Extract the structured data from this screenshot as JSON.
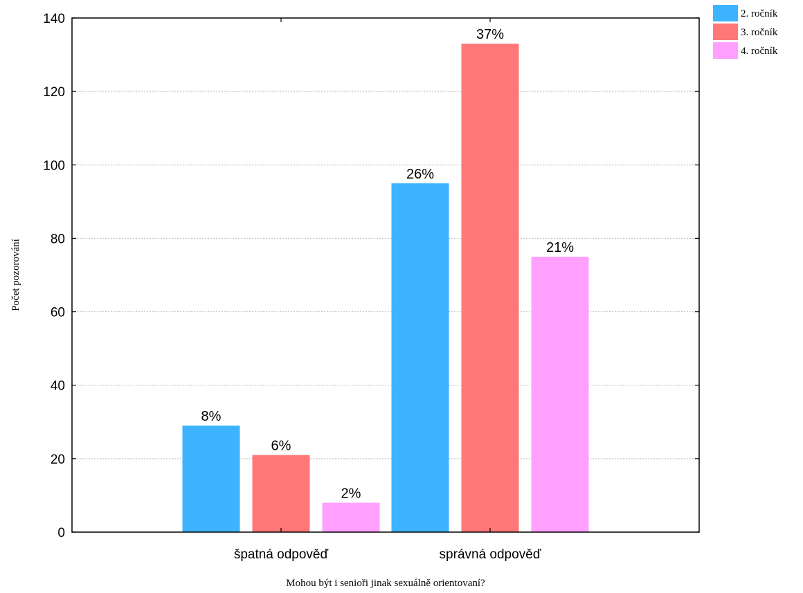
{
  "chart_data": {
    "type": "bar",
    "categories": [
      "špatná odpověď",
      "správná odpověď"
    ],
    "series": [
      {
        "name": "2. ročník",
        "color": "#3EB3FF",
        "values": [
          29,
          95
        ],
        "labels": [
          "8%",
          "26%"
        ]
      },
      {
        "name": "3. ročník",
        "color": "#FF7777",
        "values": [
          21,
          133
        ],
        "labels": [
          "6%",
          "37%"
        ]
      },
      {
        "name": "4. ročník",
        "color": "#FFA0FF",
        "values": [
          8,
          75
        ],
        "labels": [
          "2%",
          "21%"
        ]
      }
    ],
    "xlabel": "Mohou být i senioři jinak sexuálně orientovaní?",
    "ylabel": "Počet pozorování",
    "ylim": [
      0,
      140
    ],
    "yticks": [
      0,
      20,
      40,
      60,
      80,
      100,
      120,
      140
    ],
    "grid": true,
    "legend_position": "top-right"
  }
}
